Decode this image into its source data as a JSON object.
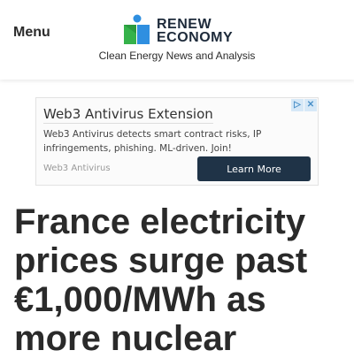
{
  "header": {
    "menu_label": "Menu",
    "logo": {
      "line1": "RENEW",
      "line2": "ECONOMY",
      "colors": {
        "blue": "#2f8fe0",
        "green": "#35b24a",
        "dark": "#1d2a3a"
      }
    },
    "tagline": "Clean Energy News and Analysis"
  },
  "ad": {
    "title": "Web3 Antivirus Extension",
    "body": "Web3 Antivirus detects smart contract risks, IP infringements, phishing. ML-driven. Join!",
    "source": "Web3 Antivirus",
    "cta_label": "Learn More",
    "choices_icons": [
      "adchoices-icon",
      "close-icon"
    ],
    "cta_color": "#1f3347"
  },
  "article": {
    "headline": "France electricity prices surge past €1,000/MWh as more nuclear"
  }
}
